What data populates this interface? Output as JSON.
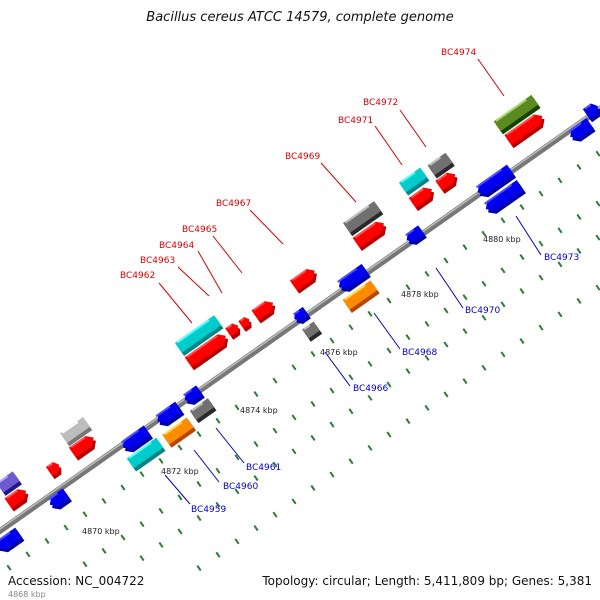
{
  "title": "Bacillus cereus ATCC 14579, complete genome",
  "footer": {
    "accession": "Accession: NC_004722",
    "stats": "Topology: circular; Length: 5,411,809 bp; Genes: 5,381",
    "clipped_tick": "4868 kbp"
  },
  "ticks": [
    "4870 kbp",
    "4872 kbp",
    "4874 kbp",
    "4876 kbp",
    "4878 kbp",
    "4880 kbp"
  ],
  "genes_red_labels": [
    "BC4962",
    "BC4963",
    "BC4964",
    "BC4965",
    "BC4967",
    "BC4969",
    "BC4971",
    "BC4972",
    "BC4974"
  ],
  "genes_blue_labels": [
    "BC4959",
    "BC4960",
    "BC4961",
    "BC4966",
    "BC4968",
    "BC4970",
    "BC4973"
  ],
  "colors": {
    "backbone": "#808080",
    "forward_cds": "#ff0000",
    "reverse_cds": "#0000ee",
    "cyan_feature": "#00cccc",
    "orange_feature": "#ff8c00",
    "gray_feature": "#707070",
    "lightgray_feature": "#bdbdbd",
    "olive_feature": "#5a8a20",
    "purple_feature": "#6a5acd",
    "tick_mark": "#2e7d32",
    "label_red": "#dd0000",
    "label_blue": "#0000cc"
  }
}
